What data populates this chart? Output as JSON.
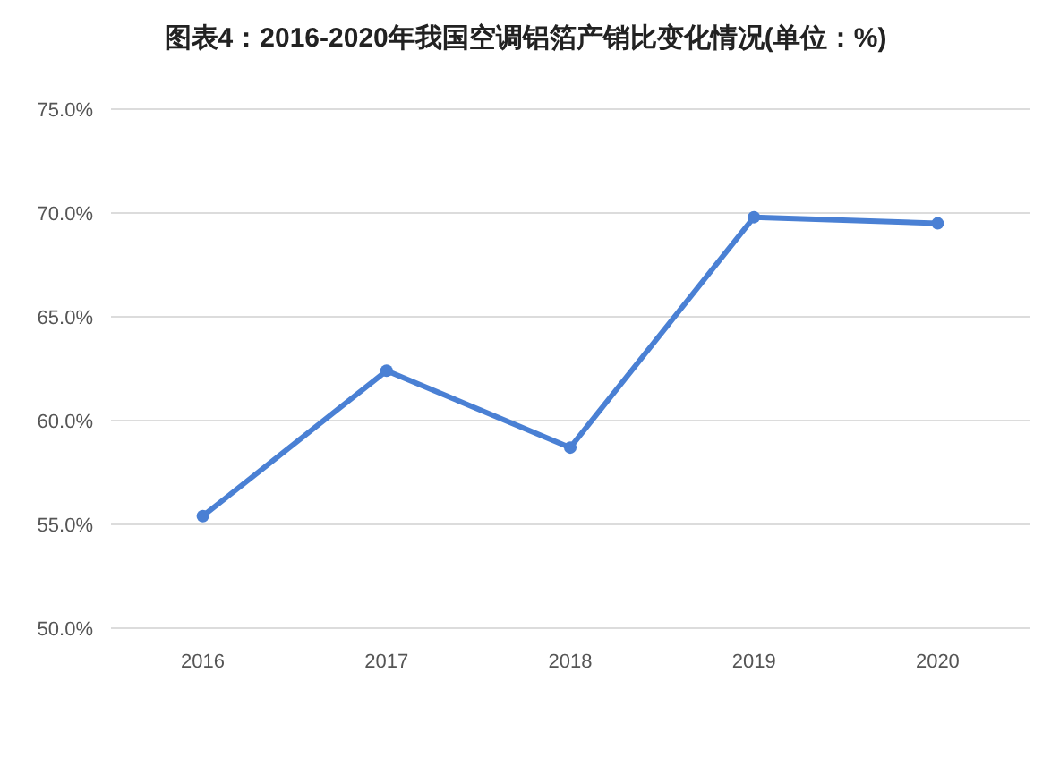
{
  "chart_data": {
    "type": "line",
    "title": "图表4：2016-2020年我国空调铝箔产销比变化情况(单位：%)",
    "categories": [
      "2016",
      "2017",
      "2018",
      "2019",
      "2020"
    ],
    "series": [
      {
        "color": "#4a80d4",
        "values": [
          55.4,
          62.4,
          58.7,
          69.8,
          69.5
        ]
      }
    ],
    "ylim": [
      50,
      75
    ],
    "yticks": [
      {
        "value": 50,
        "label": "50.0%"
      },
      {
        "value": 55,
        "label": "55.0%"
      },
      {
        "value": 60,
        "label": "60.0%"
      },
      {
        "value": 65,
        "label": "65.0%"
      },
      {
        "value": 70,
        "label": "70.0%"
      },
      {
        "value": 75,
        "label": "75.0%"
      }
    ],
    "grid": "y",
    "marker": "circle",
    "line_style": "solid"
  }
}
